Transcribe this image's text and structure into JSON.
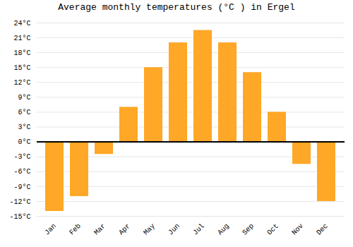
{
  "chart_data": {
    "type": "bar",
    "title": "Average monthly temperatures (°C ) in Ergel",
    "categories": [
      "Jan",
      "Feb",
      "Mar",
      "Apr",
      "May",
      "Jun",
      "Jul",
      "Aug",
      "Sep",
      "Oct",
      "Nov",
      "Dec"
    ],
    "values": [
      -14,
      -11,
      -2.5,
      7,
      15,
      20,
      22.5,
      20,
      14,
      6,
      -4.5,
      -12
    ],
    "color": "#FFA726",
    "ylim": [
      -15,
      24
    ],
    "yticks": [
      {
        "value": -15,
        "label": "-15°C"
      },
      {
        "value": -12,
        "label": "-12°C"
      },
      {
        "value": -9,
        "label": "-9°C"
      },
      {
        "value": -6,
        "label": "-6°C"
      },
      {
        "value": -3,
        "label": "-3°C"
      },
      {
        "value": 0,
        "label": "0°C"
      },
      {
        "value": 3,
        "label": "3°C"
      },
      {
        "value": 6,
        "label": "6°C"
      },
      {
        "value": 9,
        "label": "9°C"
      },
      {
        "value": 12,
        "label": "12°C"
      },
      {
        "value": 15,
        "label": "15°C"
      },
      {
        "value": 18,
        "label": "18°C"
      },
      {
        "value": 21,
        "label": "21°C"
      },
      {
        "value": 24,
        "label": "24°C"
      }
    ],
    "grid": true
  }
}
